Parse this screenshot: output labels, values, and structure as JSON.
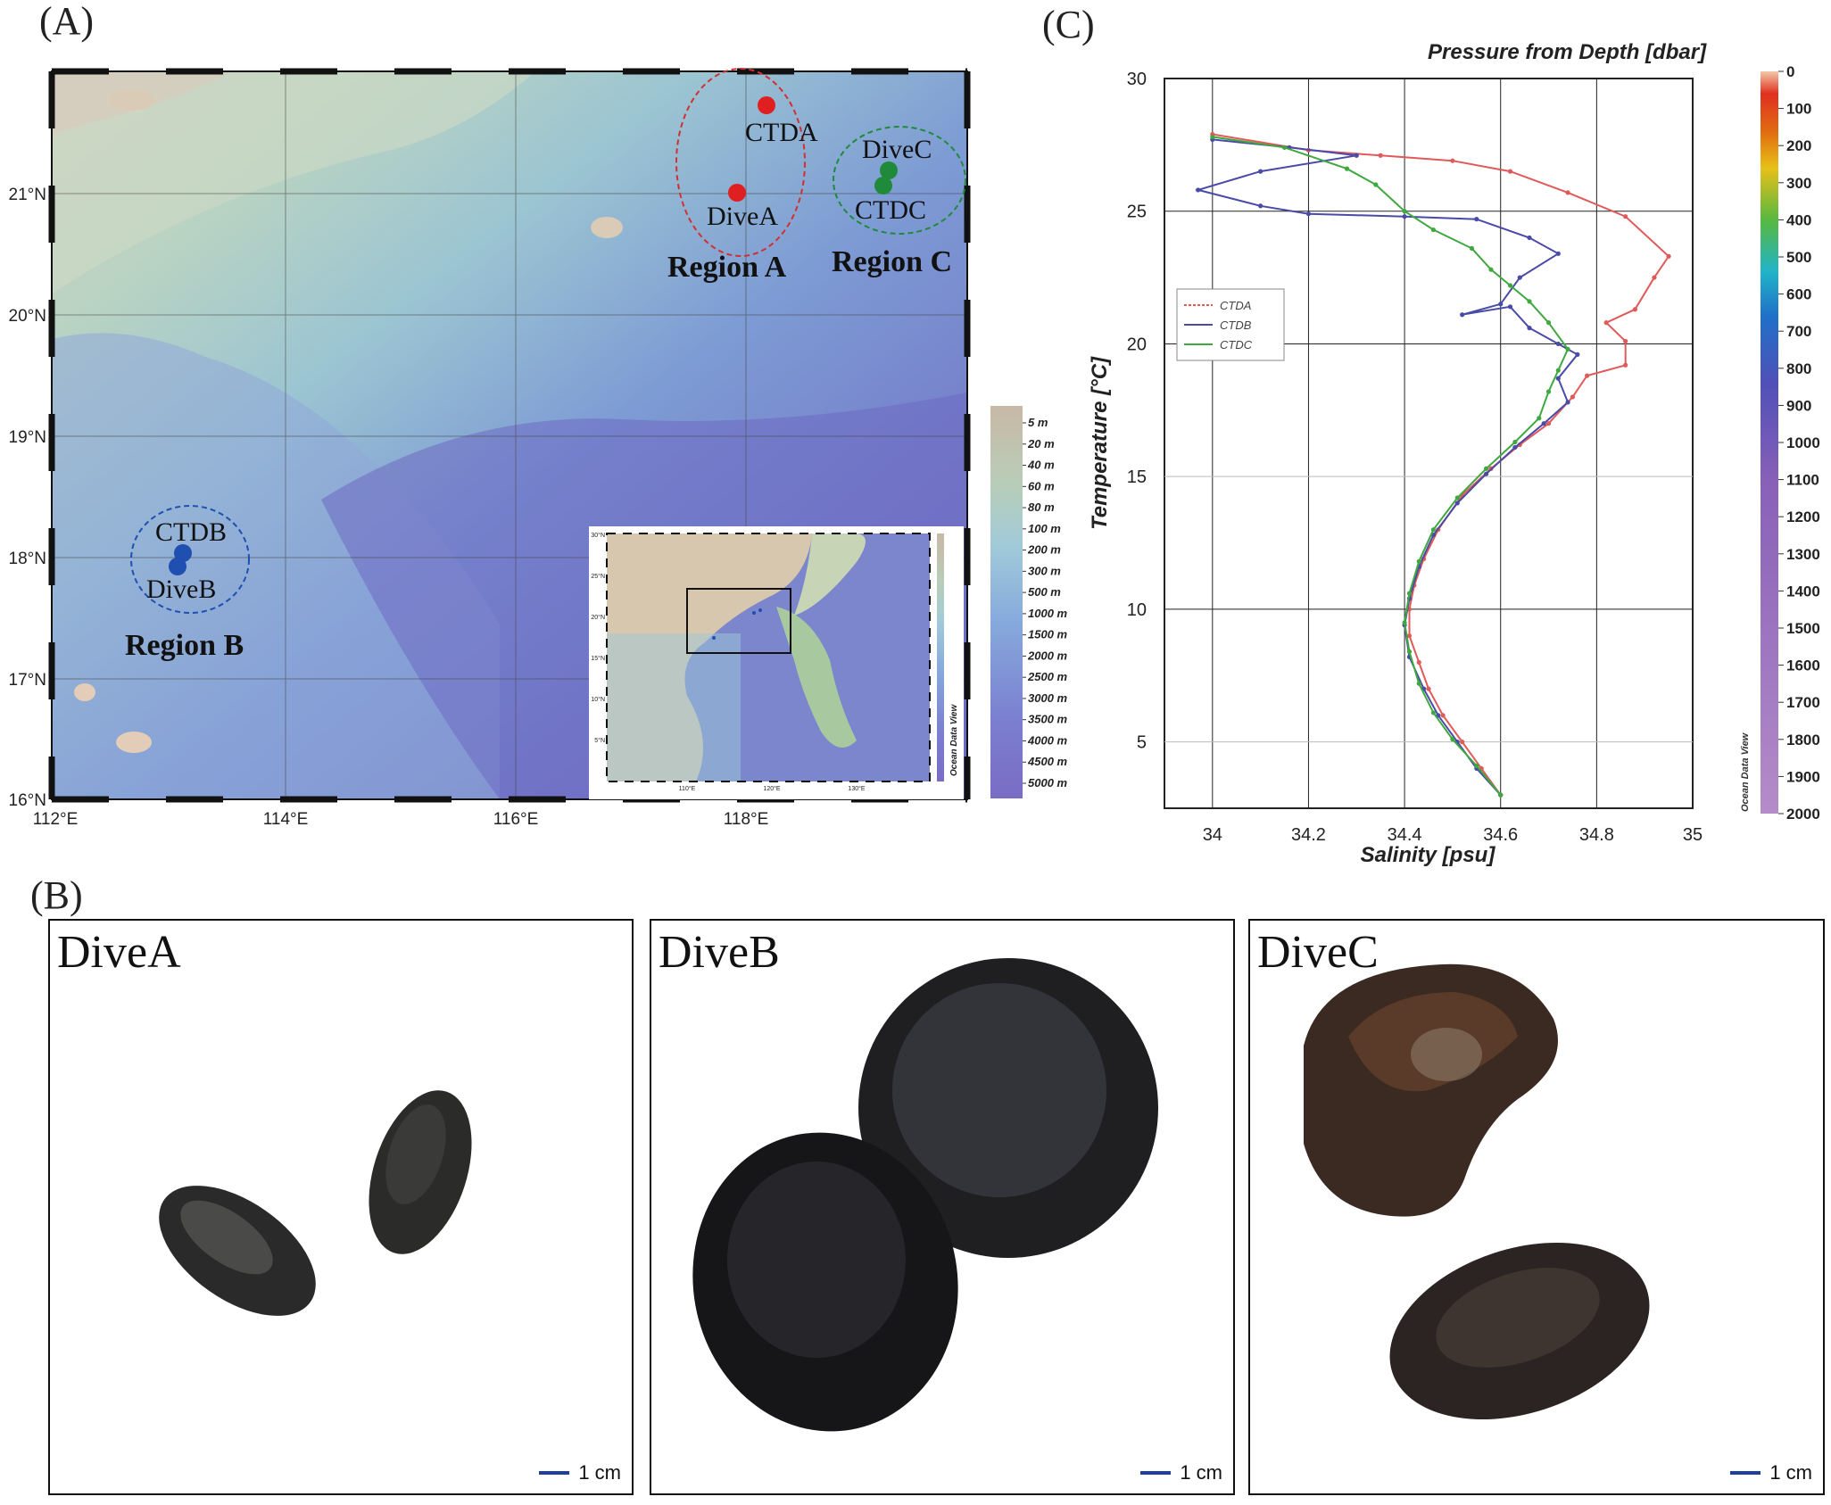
{
  "panel_a": {
    "label": "(A)",
    "lat_labels": [
      "21°N",
      "20°N",
      "19°N",
      "18°N",
      "17°N",
      "16°N"
    ],
    "lon_labels": [
      "112°E",
      "114°E",
      "116°E",
      "118°E"
    ],
    "stations": [
      {
        "name": "CTDA",
        "color": "#e02020"
      },
      {
        "name": "DiveA",
        "color": "#e02020"
      },
      {
        "name": "DiveC",
        "color": "#1e8a3a"
      },
      {
        "name": "CTDC",
        "color": "#1e8a3a"
      },
      {
        "name": "CTDB",
        "color": "#1f4fb0"
      },
      {
        "name": "DiveB",
        "color": "#1f4fb0"
      }
    ],
    "regions": [
      "Region A",
      "Region C",
      "Region B"
    ],
    "depth_legend": [
      "5 m",
      "20 m",
      "40 m",
      "60 m",
      "80 m",
      "100 m",
      "200 m",
      "300 m",
      "500 m",
      "1000 m",
      "1500 m",
      "2000 m",
      "2500 m",
      "3000 m",
      "3500 m",
      "4000 m",
      "4500 m",
      "5000 m"
    ],
    "inset": {
      "lat_labels": [
        "30°N",
        "25°N",
        "20°N",
        "15°N",
        "10°N",
        "5°N"
      ],
      "lon_labels": [
        "110°E",
        "120°E",
        "130°E"
      ],
      "brand": "Ocean Data View"
    }
  },
  "panel_b": {
    "label": "(B)",
    "photos": [
      {
        "title": "DiveA",
        "scale": "1 cm"
      },
      {
        "title": "DiveB",
        "scale": "1 cm"
      },
      {
        "title": "DiveC",
        "scale": "1 cm"
      }
    ]
  },
  "panel_c": {
    "label": "(C)",
    "colorbar_title": "Pressure from Depth [dbar]",
    "colorbar_ticks": [
      "0",
      "100",
      "200",
      "300",
      "400",
      "500",
      "600",
      "700",
      "800",
      "900",
      "1000",
      "1100",
      "1200",
      "1300",
      "1400",
      "1500",
      "1600",
      "1700",
      "1800",
      "1900",
      "2000"
    ],
    "brand": "Ocean Data View"
  },
  "chart_data": {
    "type": "line",
    "title": "",
    "xlabel": "Salinity [psu]",
    "ylabel": "Temperature [°C]",
    "xlim": [
      33.9,
      35.0
    ],
    "ylim": [
      2.5,
      30
    ],
    "x_ticks": [
      "34",
      "34.2",
      "34.4",
      "34.6",
      "34.8",
      "35"
    ],
    "y_ticks": [
      "5",
      "10",
      "15",
      "20",
      "25",
      "30"
    ],
    "grid": true,
    "legend_position": "top-left",
    "series": [
      {
        "name": "CTDA",
        "color": "#e05a5a",
        "points": [
          [
            34.0,
            27.9
          ],
          [
            34.2,
            27.3
          ],
          [
            34.35,
            27.1
          ],
          [
            34.5,
            26.9
          ],
          [
            34.62,
            26.5
          ],
          [
            34.74,
            25.7
          ],
          [
            34.86,
            24.8
          ],
          [
            34.95,
            23.3
          ],
          [
            34.92,
            22.5
          ],
          [
            34.88,
            21.3
          ],
          [
            34.82,
            20.8
          ],
          [
            34.86,
            20.1
          ],
          [
            34.86,
            19.2
          ],
          [
            34.78,
            18.8
          ],
          [
            34.75,
            18.0
          ],
          [
            34.7,
            17.0
          ],
          [
            34.64,
            16.2
          ],
          [
            34.58,
            15.3
          ],
          [
            34.52,
            14.3
          ],
          [
            34.47,
            13.0
          ],
          [
            34.44,
            11.9
          ],
          [
            34.42,
            10.9
          ],
          [
            34.41,
            10.0
          ],
          [
            34.41,
            9.0
          ],
          [
            34.43,
            8.0
          ],
          [
            34.45,
            7.0
          ],
          [
            34.48,
            6.0
          ],
          [
            34.52,
            5.0
          ],
          [
            34.56,
            4.0
          ],
          [
            34.6,
            3.0
          ]
        ]
      },
      {
        "name": "CTDB",
        "color": "#4a4aa8",
        "points": [
          [
            34.0,
            27.7
          ],
          [
            34.16,
            27.4
          ],
          [
            34.3,
            27.1
          ],
          [
            34.1,
            26.5
          ],
          [
            33.97,
            25.8
          ],
          [
            34.1,
            25.2
          ],
          [
            34.2,
            24.9
          ],
          [
            34.4,
            24.8
          ],
          [
            34.55,
            24.7
          ],
          [
            34.66,
            24.0
          ],
          [
            34.72,
            23.4
          ],
          [
            34.64,
            22.5
          ],
          [
            34.6,
            21.5
          ],
          [
            34.52,
            21.1
          ],
          [
            34.62,
            21.4
          ],
          [
            34.66,
            20.6
          ],
          [
            34.72,
            20.0
          ],
          [
            34.76,
            19.6
          ],
          [
            34.72,
            18.7
          ],
          [
            34.74,
            17.8
          ],
          [
            34.69,
            17.0
          ],
          [
            34.63,
            16.1
          ],
          [
            34.57,
            15.1
          ],
          [
            34.51,
            14.0
          ],
          [
            34.46,
            12.8
          ],
          [
            34.43,
            11.6
          ],
          [
            34.41,
            10.4
          ],
          [
            34.4,
            9.4
          ],
          [
            34.41,
            8.2
          ],
          [
            34.44,
            7.0
          ],
          [
            34.47,
            6.0
          ],
          [
            34.51,
            5.0
          ],
          [
            34.55,
            4.0
          ],
          [
            34.6,
            3.0
          ]
        ]
      },
      {
        "name": "CTDC",
        "color": "#3fa83f",
        "points": [
          [
            34.0,
            27.8
          ],
          [
            34.15,
            27.4
          ],
          [
            34.28,
            26.6
          ],
          [
            34.34,
            26.0
          ],
          [
            34.4,
            25.0
          ],
          [
            34.46,
            24.3
          ],
          [
            34.54,
            23.6
          ],
          [
            34.58,
            22.8
          ],
          [
            34.62,
            22.2
          ],
          [
            34.66,
            21.6
          ],
          [
            34.7,
            20.8
          ],
          [
            34.74,
            19.8
          ],
          [
            34.72,
            19.0
          ],
          [
            34.7,
            18.2
          ],
          [
            34.68,
            17.2
          ],
          [
            34.63,
            16.3
          ],
          [
            34.57,
            15.3
          ],
          [
            34.51,
            14.2
          ],
          [
            34.46,
            13.0
          ],
          [
            34.43,
            11.8
          ],
          [
            34.41,
            10.6
          ],
          [
            34.4,
            9.5
          ],
          [
            34.41,
            8.4
          ],
          [
            34.43,
            7.2
          ],
          [
            34.46,
            6.1
          ],
          [
            34.5,
            5.1
          ],
          [
            34.55,
            4.1
          ],
          [
            34.6,
            3.0
          ]
        ]
      }
    ]
  }
}
